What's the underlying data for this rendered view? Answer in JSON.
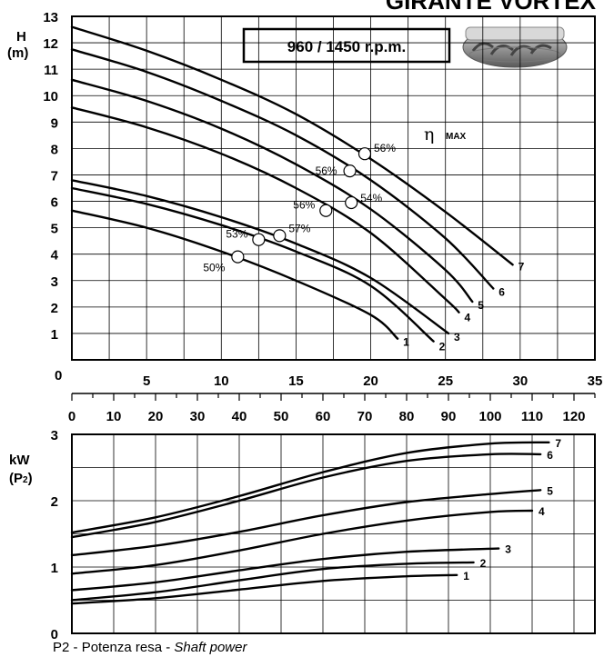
{
  "title": "GIRANTE VORTEX",
  "speed_label": "960 / 1450 r.p.m.",
  "eta_label": "η",
  "eta_sub": "MAX",
  "footer": {
    "p2": "P2",
    "text": " - Potenza resa - ",
    "italic": "Shaft power"
  },
  "chart_data": [
    {
      "type": "line",
      "ylabel": "H",
      "ylabel_unit": "(m)",
      "xlim": [
        0,
        35
      ],
      "ylim": [
        0,
        13
      ],
      "x_ticks": [
        5,
        10,
        15,
        20,
        25,
        30,
        35
      ],
      "secondary_x_ticks": [
        0,
        10,
        20,
        30,
        40,
        50,
        60,
        70,
        80,
        90,
        100,
        110,
        120
      ],
      "y_ticks": [
        1,
        2,
        3,
        4,
        5,
        6,
        7,
        8,
        9,
        10,
        11,
        12,
        13
      ],
      "x_zero_label": "0",
      "grid": true,
      "series": [
        {
          "name": "1",
          "points": [
            [
              0,
              5.65
            ],
            [
              5,
              5.0
            ],
            [
              10,
              4.1
            ],
            [
              15,
              3.0
            ],
            [
              20,
              1.7
            ],
            [
              21.8,
              0.8
            ]
          ]
        },
        {
          "name": "2",
          "points": [
            [
              0,
              6.5
            ],
            [
              5,
              5.9
            ],
            [
              10,
              5.1
            ],
            [
              15,
              4.1
            ],
            [
              20,
              2.8
            ],
            [
              24.2,
              0.7
            ]
          ]
        },
        {
          "name": "3",
          "points": [
            [
              0,
              6.8
            ],
            [
              5,
              6.2
            ],
            [
              10,
              5.4
            ],
            [
              15,
              4.4
            ],
            [
              20,
              3.1
            ],
            [
              25.2,
              1.0
            ]
          ]
        },
        {
          "name": "4",
          "points": [
            [
              0,
              9.55
            ],
            [
              5,
              8.8
            ],
            [
              10,
              7.8
            ],
            [
              15,
              6.5
            ],
            [
              20,
              4.8
            ],
            [
              25,
              2.3
            ],
            [
              25.9,
              1.8
            ]
          ]
        },
        {
          "name": "5",
          "points": [
            [
              0,
              10.6
            ],
            [
              5,
              9.8
            ],
            [
              10,
              8.75
            ],
            [
              15,
              7.4
            ],
            [
              20,
              5.7
            ],
            [
              25,
              3.4
            ],
            [
              26.8,
              2.2
            ]
          ]
        },
        {
          "name": "6",
          "points": [
            [
              0,
              11.75
            ],
            [
              5,
              10.9
            ],
            [
              10,
              9.8
            ],
            [
              15,
              8.5
            ],
            [
              20,
              6.8
            ],
            [
              25,
              4.6
            ],
            [
              28.2,
              2.7
            ]
          ]
        },
        {
          "name": "7",
          "points": [
            [
              0,
              12.6
            ],
            [
              5,
              11.7
            ],
            [
              10,
              10.6
            ],
            [
              15,
              9.3
            ],
            [
              20,
              7.6
            ],
            [
              25,
              5.6
            ],
            [
              29.5,
              3.6
            ]
          ]
        }
      ],
      "annotations": [
        {
          "text": "50%",
          "x": 11.1,
          "y": 3.9
        },
        {
          "text": "53%",
          "x": 12.5,
          "y": 4.55
        },
        {
          "text": "57%",
          "x": 13.9,
          "y": 4.7
        },
        {
          "text": "56%",
          "x": 17.0,
          "y": 5.65
        },
        {
          "text": "54%",
          "x": 18.7,
          "y": 5.95
        },
        {
          "text": "56%",
          "x": 18.6,
          "y": 7.15
        },
        {
          "text": "56%",
          "x": 19.6,
          "y": 7.8
        }
      ]
    },
    {
      "type": "line",
      "ylabel": "kW",
      "ylabel_unit": "(P2)",
      "xlim": [
        0,
        125
      ],
      "ylim": [
        0,
        3
      ],
      "y_ticks": [
        0,
        1,
        2,
        3
      ],
      "grid": true,
      "series": [
        {
          "name": "1",
          "points": [
            [
              0,
              0.45
            ],
            [
              20,
              0.53
            ],
            [
              40,
              0.66
            ],
            [
              60,
              0.79
            ],
            [
              80,
              0.86
            ],
            [
              92,
              0.88
            ]
          ]
        },
        {
          "name": "2",
          "points": [
            [
              0,
              0.5
            ],
            [
              20,
              0.62
            ],
            [
              40,
              0.8
            ],
            [
              60,
              0.97
            ],
            [
              80,
              1.05
            ],
            [
              96,
              1.07
            ]
          ]
        },
        {
          "name": "3",
          "points": [
            [
              0,
              0.65
            ],
            [
              20,
              0.77
            ],
            [
              40,
              0.95
            ],
            [
              60,
              1.12
            ],
            [
              80,
              1.23
            ],
            [
              102,
              1.28
            ]
          ]
        },
        {
          "name": "4",
          "points": [
            [
              0,
              0.9
            ],
            [
              20,
              1.03
            ],
            [
              40,
              1.25
            ],
            [
              60,
              1.5
            ],
            [
              80,
              1.7
            ],
            [
              100,
              1.83
            ],
            [
              110,
              1.85
            ]
          ]
        },
        {
          "name": "5",
          "points": [
            [
              0,
              1.18
            ],
            [
              20,
              1.32
            ],
            [
              40,
              1.53
            ],
            [
              60,
              1.78
            ],
            [
              80,
              1.98
            ],
            [
              100,
              2.1
            ],
            [
              112,
              2.16
            ]
          ]
        },
        {
          "name": "6",
          "points": [
            [
              0,
              1.45
            ],
            [
              20,
              1.68
            ],
            [
              40,
              2.0
            ],
            [
              60,
              2.35
            ],
            [
              80,
              2.6
            ],
            [
              100,
              2.7
            ],
            [
              112,
              2.7
            ]
          ]
        },
        {
          "name": "7",
          "points": [
            [
              0,
              1.52
            ],
            [
              20,
              1.75
            ],
            [
              40,
              2.07
            ],
            [
              60,
              2.43
            ],
            [
              80,
              2.72
            ],
            [
              100,
              2.86
            ],
            [
              114,
              2.88
            ]
          ]
        }
      ]
    }
  ]
}
